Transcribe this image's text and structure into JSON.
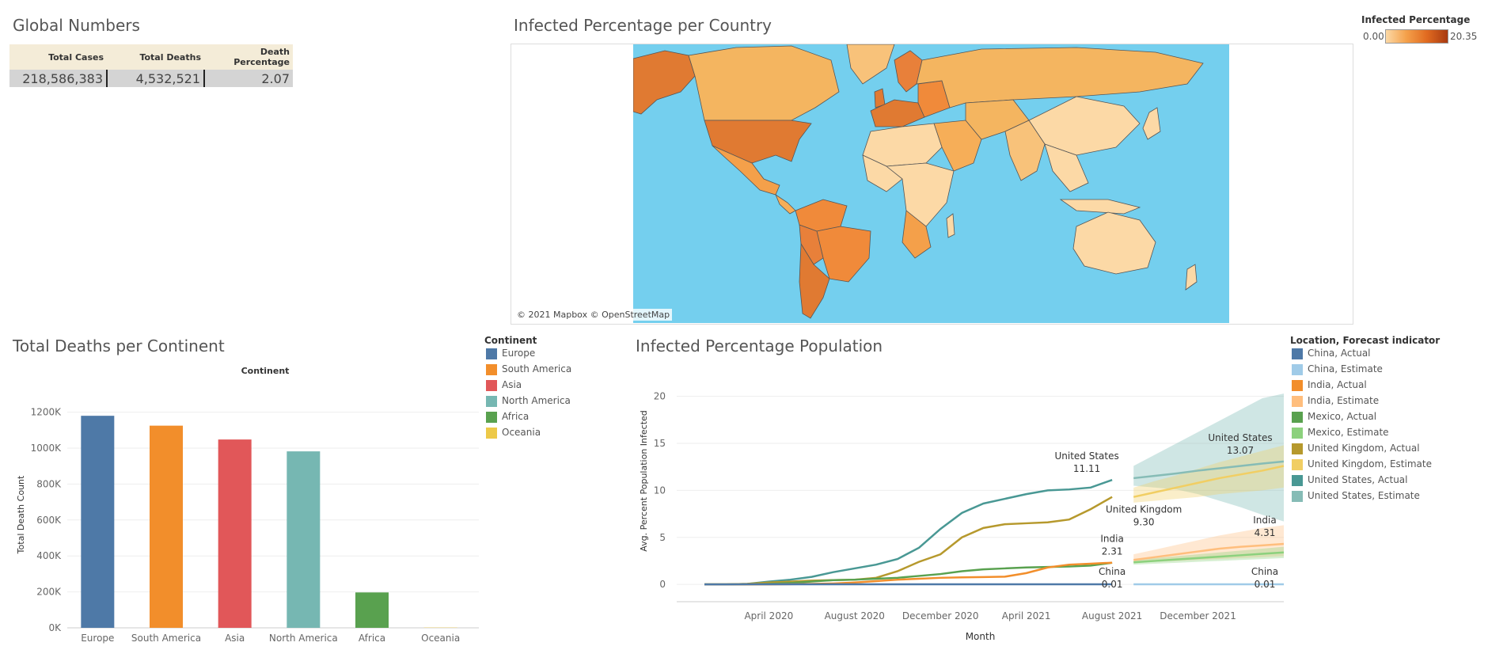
{
  "global_numbers": {
    "title": "Global Numbers",
    "headers": [
      "Total Cases",
      "Total Deaths",
      "Death Percentage"
    ],
    "values": [
      "218,586,383",
      "4,532,521",
      "2.07"
    ]
  },
  "map": {
    "title": "Infected Percentage per Country",
    "credit": "© 2021 Mapbox © OpenStreetMap",
    "legend_title": "Infected Percentage",
    "legend_min": "0.00",
    "legend_max": "20.35",
    "colors": {
      "ocean": "#74cfee",
      "low": "#fcd9a6",
      "mid": "#f4a04a",
      "high": "#e07a32",
      "border": "#555555"
    }
  },
  "deaths_chart": {
    "title": "Total Deaths per Continent",
    "legend_title": "Continent",
    "chart_data": {
      "type": "bar",
      "title": "",
      "header": "Continent",
      "xlabel": "",
      "ylabel": "Total Death Count",
      "categories": [
        "Europe",
        "South America",
        "Asia",
        "North America",
        "Africa",
        "Oceania"
      ],
      "values": [
        1180000,
        1125000,
        1048000,
        982000,
        197000,
        1500
      ],
      "colors": [
        "#4e79a7",
        "#f28e2b",
        "#e15759",
        "#76b7b2",
        "#59a14f",
        "#edc948"
      ],
      "ylim": [
        0,
        1260000
      ],
      "yticks": [
        0,
        200000,
        400000,
        600000,
        800000,
        1000000,
        1200000
      ],
      "ytick_labels": [
        "0K",
        "200K",
        "400K",
        "600K",
        "800K",
        "1000K",
        "1200K"
      ],
      "grid": true,
      "legend": "right"
    }
  },
  "infected_chart": {
    "title": "Infected Percentage Population",
    "legend_title": "Location, Forecast indicator",
    "legend": [
      {
        "label": "China, Actual",
        "color": "#4e79a7"
      },
      {
        "label": "China, Estimate",
        "color": "#a0cbe8"
      },
      {
        "label": "India, Actual",
        "color": "#f28e2b"
      },
      {
        "label": "India, Estimate",
        "color": "#ffbe7d"
      },
      {
        "label": "Mexico, Actual",
        "color": "#59a14f"
      },
      {
        "label": "Mexico, Estimate",
        "color": "#8cd17d"
      },
      {
        "label": "United Kingdom, Actual",
        "color": "#b6992d"
      },
      {
        "label": "United Kingdom, Estimate",
        "color": "#f1ce63"
      },
      {
        "label": "United States, Actual",
        "color": "#499894"
      },
      {
        "label": "United States, Estimate",
        "color": "#86bcb6"
      }
    ],
    "chart_data": {
      "type": "line",
      "xlabel": "Month",
      "ylabel": "Avg. Percent Population Infected",
      "x_ticks": [
        "April 2020",
        "August 2020",
        "December 2020",
        "April 2021",
        "August 2021",
        "December 2021"
      ],
      "x_tick_months": [
        "2020-04",
        "2020-08",
        "2020-12",
        "2021-04",
        "2021-08",
        "2021-12"
      ],
      "ylim": [
        -1,
        23
      ],
      "yticks": [
        0,
        5,
        10,
        15,
        20
      ],
      "months": [
        "2020-01",
        "2020-02",
        "2020-03",
        "2020-04",
        "2020-05",
        "2020-06",
        "2020-07",
        "2020-08",
        "2020-09",
        "2020-10",
        "2020-11",
        "2020-12",
        "2021-01",
        "2021-02",
        "2021-03",
        "2021-04",
        "2021-05",
        "2021-06",
        "2021-07",
        "2021-08"
      ],
      "forecast_months": [
        "2021-09",
        "2021-10",
        "2021-11",
        "2021-12",
        "2022-01",
        "2022-02",
        "2022-03",
        "2022-04"
      ],
      "series": [
        {
          "name": "United States, Actual",
          "color": "#499894",
          "values": [
            0.0,
            0.0,
            0.05,
            0.3,
            0.5,
            0.8,
            1.3,
            1.7,
            2.1,
            2.7,
            3.9,
            5.9,
            7.6,
            8.6,
            9.1,
            9.6,
            10.0,
            10.1,
            10.3,
            11.11
          ]
        },
        {
          "name": "United Kingdom, Actual",
          "color": "#b6992d",
          "values": [
            0.0,
            0.0,
            0.05,
            0.2,
            0.3,
            0.4,
            0.45,
            0.5,
            0.7,
            1.4,
            2.4,
            3.2,
            5.0,
            6.0,
            6.4,
            6.5,
            6.6,
            6.9,
            8.0,
            9.3
          ]
        },
        {
          "name": "Mexico, Actual",
          "color": "#59a14f",
          "values": [
            0.0,
            0.0,
            0.0,
            0.05,
            0.15,
            0.3,
            0.45,
            0.5,
            0.6,
            0.7,
            0.9,
            1.1,
            1.4,
            1.6,
            1.7,
            1.8,
            1.85,
            1.9,
            2.0,
            2.3
          ]
        },
        {
          "name": "India, Actual",
          "color": "#f28e2b",
          "values": [
            0.0,
            0.0,
            0.0,
            0.0,
            0.02,
            0.05,
            0.1,
            0.2,
            0.35,
            0.5,
            0.6,
            0.7,
            0.75,
            0.78,
            0.82,
            1.2,
            1.8,
            2.1,
            2.2,
            2.31
          ]
        },
        {
          "name": "China, Actual",
          "color": "#4e79a7",
          "values": [
            0.0,
            0.0,
            0.01,
            0.01,
            0.01,
            0.01,
            0.01,
            0.01,
            0.01,
            0.01,
            0.01,
            0.01,
            0.01,
            0.01,
            0.01,
            0.01,
            0.01,
            0.01,
            0.01,
            0.01
          ]
        }
      ],
      "forecasts": [
        {
          "name": "United States, Estimate",
          "color": "#86bcb6",
          "band_color": "#76b7b2",
          "values": [
            11.3,
            11.55,
            11.8,
            12.1,
            12.35,
            12.6,
            12.85,
            13.07
          ],
          "upper": [
            12.6,
            13.8,
            15.0,
            16.2,
            17.4,
            18.6,
            19.8,
            20.3
          ],
          "lower": [
            10.5,
            10.3,
            10.1,
            9.6,
            8.9,
            8.2,
            7.4,
            6.7
          ]
        },
        {
          "name": "United Kingdom, Estimate",
          "color": "#f1ce63",
          "band_color": "#f1ce63",
          "values": [
            9.3,
            9.8,
            10.3,
            10.8,
            11.3,
            11.7,
            12.1,
            12.6
          ],
          "upper": [
            10.3,
            11.0,
            11.6,
            12.3,
            13.0,
            13.6,
            14.2,
            14.8
          ],
          "lower": [
            8.7,
            8.9,
            9.1,
            9.3,
            9.6,
            9.8,
            10.0,
            10.3
          ]
        },
        {
          "name": "India, Estimate",
          "color": "#ffbe7d",
          "band_color": "#ffbe7d",
          "values": [
            2.6,
            2.9,
            3.2,
            3.5,
            3.8,
            4.0,
            4.15,
            4.31
          ],
          "upper": [
            3.2,
            3.7,
            4.2,
            4.7,
            5.2,
            5.6,
            6.0,
            6.3
          ],
          "lower": [
            2.3,
            2.4,
            2.5,
            2.6,
            2.7,
            2.8,
            2.9,
            3.0
          ]
        },
        {
          "name": "Mexico, Estimate",
          "color": "#8cd17d",
          "band_color": "#8cd17d",
          "values": [
            2.35,
            2.5,
            2.65,
            2.8,
            2.95,
            3.1,
            3.25,
            3.4
          ],
          "upper": [
            2.6,
            2.8,
            3.0,
            3.2,
            3.4,
            3.6,
            3.8,
            4.0
          ],
          "lower": [
            2.1,
            2.2,
            2.3,
            2.4,
            2.5,
            2.6,
            2.7,
            2.8
          ]
        },
        {
          "name": "China, Estimate",
          "color": "#a0cbe8",
          "band_color": "#a0cbe8",
          "values": [
            0.01,
            0.01,
            0.01,
            0.01,
            0.01,
            0.01,
            0.01,
            0.01
          ],
          "upper": [
            0.05,
            0.05,
            0.05,
            0.05,
            0.05,
            0.05,
            0.05,
            0.05
          ],
          "lower": [
            0,
            0,
            0,
            0,
            0,
            0,
            0,
            0
          ]
        }
      ],
      "annotations": [
        {
          "name": "United States",
          "value": "11.11"
        },
        {
          "name": "United States",
          "value": "13.07"
        },
        {
          "name": "United Kingdom",
          "value": "9.30"
        },
        {
          "name": "India",
          "value": "2.31"
        },
        {
          "name": "India",
          "value": "4.31"
        },
        {
          "name": "China",
          "value": "0.01"
        },
        {
          "name": "China",
          "value": "0.01"
        }
      ]
    }
  }
}
